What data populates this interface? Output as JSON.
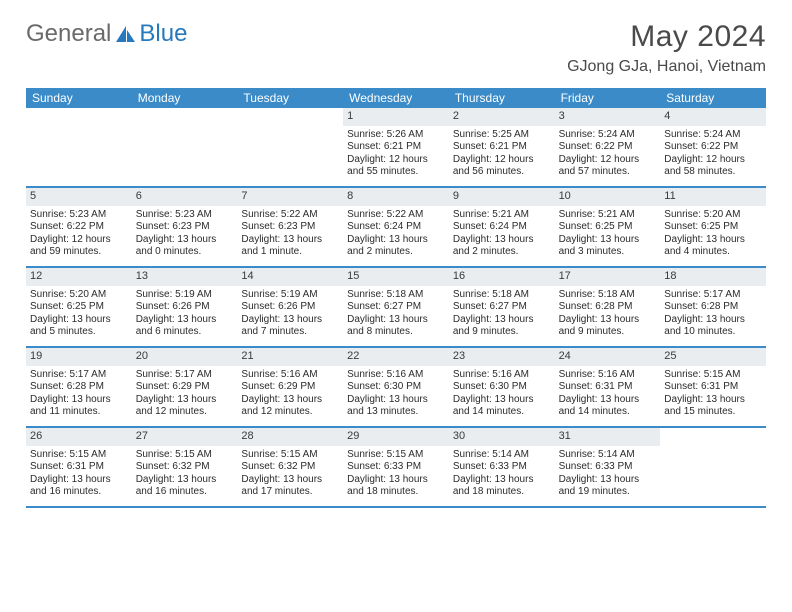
{
  "logo": {
    "general": "General",
    "blue": "Blue"
  },
  "title": "May 2024",
  "location": "GJong GJa, Hanoi, Vietnam",
  "colors": {
    "header_bg": "#3b8bc8",
    "header_text": "#ffffff",
    "daynum_bg": "#e9edef",
    "text": "#2b2b2b",
    "divider": "#3b8bc8",
    "logo_gray": "#6a6a6a",
    "logo_blue": "#2779bd"
  },
  "fonts": {
    "title_size_pt": 30,
    "location_size_pt": 16,
    "header_size_pt": 12,
    "cell_size_pt": 10
  },
  "day_names": [
    "Sunday",
    "Monday",
    "Tuesday",
    "Wednesday",
    "Thursday",
    "Friday",
    "Saturday"
  ],
  "labels": {
    "sunrise": "Sunrise:",
    "sunset": "Sunset:",
    "daylight": "Daylight:"
  },
  "weeks": [
    [
      {
        "empty": true
      },
      {
        "empty": true
      },
      {
        "empty": true
      },
      {
        "day": "1",
        "sunrise": "5:26 AM",
        "sunset": "6:21 PM",
        "dl1": "12 hours",
        "dl2": "and 55 minutes."
      },
      {
        "day": "2",
        "sunrise": "5:25 AM",
        "sunset": "6:21 PM",
        "dl1": "12 hours",
        "dl2": "and 56 minutes."
      },
      {
        "day": "3",
        "sunrise": "5:24 AM",
        "sunset": "6:22 PM",
        "dl1": "12 hours",
        "dl2": "and 57 minutes."
      },
      {
        "day": "4",
        "sunrise": "5:24 AM",
        "sunset": "6:22 PM",
        "dl1": "12 hours",
        "dl2": "and 58 minutes."
      }
    ],
    [
      {
        "day": "5",
        "sunrise": "5:23 AM",
        "sunset": "6:22 PM",
        "dl1": "12 hours",
        "dl2": "and 59 minutes."
      },
      {
        "day": "6",
        "sunrise": "5:23 AM",
        "sunset": "6:23 PM",
        "dl1": "13 hours",
        "dl2": "and 0 minutes."
      },
      {
        "day": "7",
        "sunrise": "5:22 AM",
        "sunset": "6:23 PM",
        "dl1": "13 hours",
        "dl2": "and 1 minute."
      },
      {
        "day": "8",
        "sunrise": "5:22 AM",
        "sunset": "6:24 PM",
        "dl1": "13 hours",
        "dl2": "and 2 minutes."
      },
      {
        "day": "9",
        "sunrise": "5:21 AM",
        "sunset": "6:24 PM",
        "dl1": "13 hours",
        "dl2": "and 2 minutes."
      },
      {
        "day": "10",
        "sunrise": "5:21 AM",
        "sunset": "6:25 PM",
        "dl1": "13 hours",
        "dl2": "and 3 minutes."
      },
      {
        "day": "11",
        "sunrise": "5:20 AM",
        "sunset": "6:25 PM",
        "dl1": "13 hours",
        "dl2": "and 4 minutes."
      }
    ],
    [
      {
        "day": "12",
        "sunrise": "5:20 AM",
        "sunset": "6:25 PM",
        "dl1": "13 hours",
        "dl2": "and 5 minutes."
      },
      {
        "day": "13",
        "sunrise": "5:19 AM",
        "sunset": "6:26 PM",
        "dl1": "13 hours",
        "dl2": "and 6 minutes."
      },
      {
        "day": "14",
        "sunrise": "5:19 AM",
        "sunset": "6:26 PM",
        "dl1": "13 hours",
        "dl2": "and 7 minutes."
      },
      {
        "day": "15",
        "sunrise": "5:18 AM",
        "sunset": "6:27 PM",
        "dl1": "13 hours",
        "dl2": "and 8 minutes."
      },
      {
        "day": "16",
        "sunrise": "5:18 AM",
        "sunset": "6:27 PM",
        "dl1": "13 hours",
        "dl2": "and 9 minutes."
      },
      {
        "day": "17",
        "sunrise": "5:18 AM",
        "sunset": "6:28 PM",
        "dl1": "13 hours",
        "dl2": "and 9 minutes."
      },
      {
        "day": "18",
        "sunrise": "5:17 AM",
        "sunset": "6:28 PM",
        "dl1": "13 hours",
        "dl2": "and 10 minutes."
      }
    ],
    [
      {
        "day": "19",
        "sunrise": "5:17 AM",
        "sunset": "6:28 PM",
        "dl1": "13 hours",
        "dl2": "and 11 minutes."
      },
      {
        "day": "20",
        "sunrise": "5:17 AM",
        "sunset": "6:29 PM",
        "dl1": "13 hours",
        "dl2": "and 12 minutes."
      },
      {
        "day": "21",
        "sunrise": "5:16 AM",
        "sunset": "6:29 PM",
        "dl1": "13 hours",
        "dl2": "and 12 minutes."
      },
      {
        "day": "22",
        "sunrise": "5:16 AM",
        "sunset": "6:30 PM",
        "dl1": "13 hours",
        "dl2": "and 13 minutes."
      },
      {
        "day": "23",
        "sunrise": "5:16 AM",
        "sunset": "6:30 PM",
        "dl1": "13 hours",
        "dl2": "and 14 minutes."
      },
      {
        "day": "24",
        "sunrise": "5:16 AM",
        "sunset": "6:31 PM",
        "dl1": "13 hours",
        "dl2": "and 14 minutes."
      },
      {
        "day": "25",
        "sunrise": "5:15 AM",
        "sunset": "6:31 PM",
        "dl1": "13 hours",
        "dl2": "and 15 minutes."
      }
    ],
    [
      {
        "day": "26",
        "sunrise": "5:15 AM",
        "sunset": "6:31 PM",
        "dl1": "13 hours",
        "dl2": "and 16 minutes."
      },
      {
        "day": "27",
        "sunrise": "5:15 AM",
        "sunset": "6:32 PM",
        "dl1": "13 hours",
        "dl2": "and 16 minutes."
      },
      {
        "day": "28",
        "sunrise": "5:15 AM",
        "sunset": "6:32 PM",
        "dl1": "13 hours",
        "dl2": "and 17 minutes."
      },
      {
        "day": "29",
        "sunrise": "5:15 AM",
        "sunset": "6:33 PM",
        "dl1": "13 hours",
        "dl2": "and 18 minutes."
      },
      {
        "day": "30",
        "sunrise": "5:14 AM",
        "sunset": "6:33 PM",
        "dl1": "13 hours",
        "dl2": "and 18 minutes."
      },
      {
        "day": "31",
        "sunrise": "5:14 AM",
        "sunset": "6:33 PM",
        "dl1": "13 hours",
        "dl2": "and 19 minutes."
      },
      {
        "empty": true
      }
    ]
  ]
}
